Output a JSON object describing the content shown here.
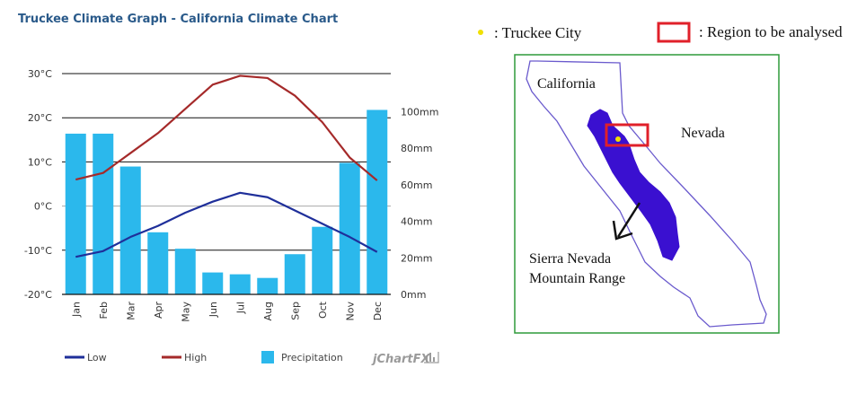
{
  "chart_data": {
    "type": "bar",
    "title": "Truckee Climate Graph - California Climate Chart",
    "categories": [
      "Jan",
      "Feb",
      "Mar",
      "Apr",
      "May",
      "Jun",
      "Jul",
      "Aug",
      "Sep",
      "Oct",
      "Nov",
      "Dec"
    ],
    "series": [
      {
        "name": "Low",
        "type": "line",
        "axis": "left",
        "color": "#1f2f9a",
        "values": [
          -11.5,
          -10.2,
          -7.0,
          -4.5,
          -1.5,
          1.0,
          3.0,
          2.0,
          -1.0,
          -4.0,
          -7.0,
          -10.4
        ]
      },
      {
        "name": "High",
        "type": "line",
        "axis": "left",
        "color": "#a52a2a",
        "values": [
          6.0,
          7.5,
          12.0,
          16.5,
          22.0,
          27.5,
          29.5,
          29.0,
          25.0,
          19.0,
          11.0,
          5.8
        ]
      },
      {
        "name": "Precipitation",
        "type": "bar",
        "axis": "right",
        "color": "#2bb8ec",
        "values": [
          88,
          88,
          70,
          34,
          25,
          12,
          11,
          9,
          22,
          37,
          72,
          101
        ]
      }
    ],
    "left_axis": {
      "unit": "°C",
      "ylim": [
        -20,
        30
      ],
      "ticks": [
        "30°C",
        "20°C",
        "10°C",
        "0°C",
        "-10°C",
        "-20°C"
      ]
    },
    "right_axis": {
      "unit": "mm",
      "ylim": [
        0,
        120
      ],
      "ticks": [
        "100mm",
        "80mm",
        "60mm",
        "40mm",
        "20mm",
        "0mm"
      ]
    },
    "grid": true,
    "legend_position": "bottom"
  },
  "legend": {
    "low": "Low",
    "high": "High",
    "precipitation": "Precipitation"
  },
  "brand": {
    "text": "jChartFX"
  },
  "map": {
    "key_city": ": Truckee City",
    "key_region": ": Region to be analysed",
    "label_california": "California",
    "label_nevada": "Nevada",
    "label_range_line1": "Sierra Nevada",
    "label_range_line2": "Mountain Range",
    "colors": {
      "border": "#2e9a3a",
      "outline": "#6a5acd",
      "range": "#3a10d0",
      "region_box": "#e0202a",
      "city_dot": "#f0e000"
    }
  }
}
